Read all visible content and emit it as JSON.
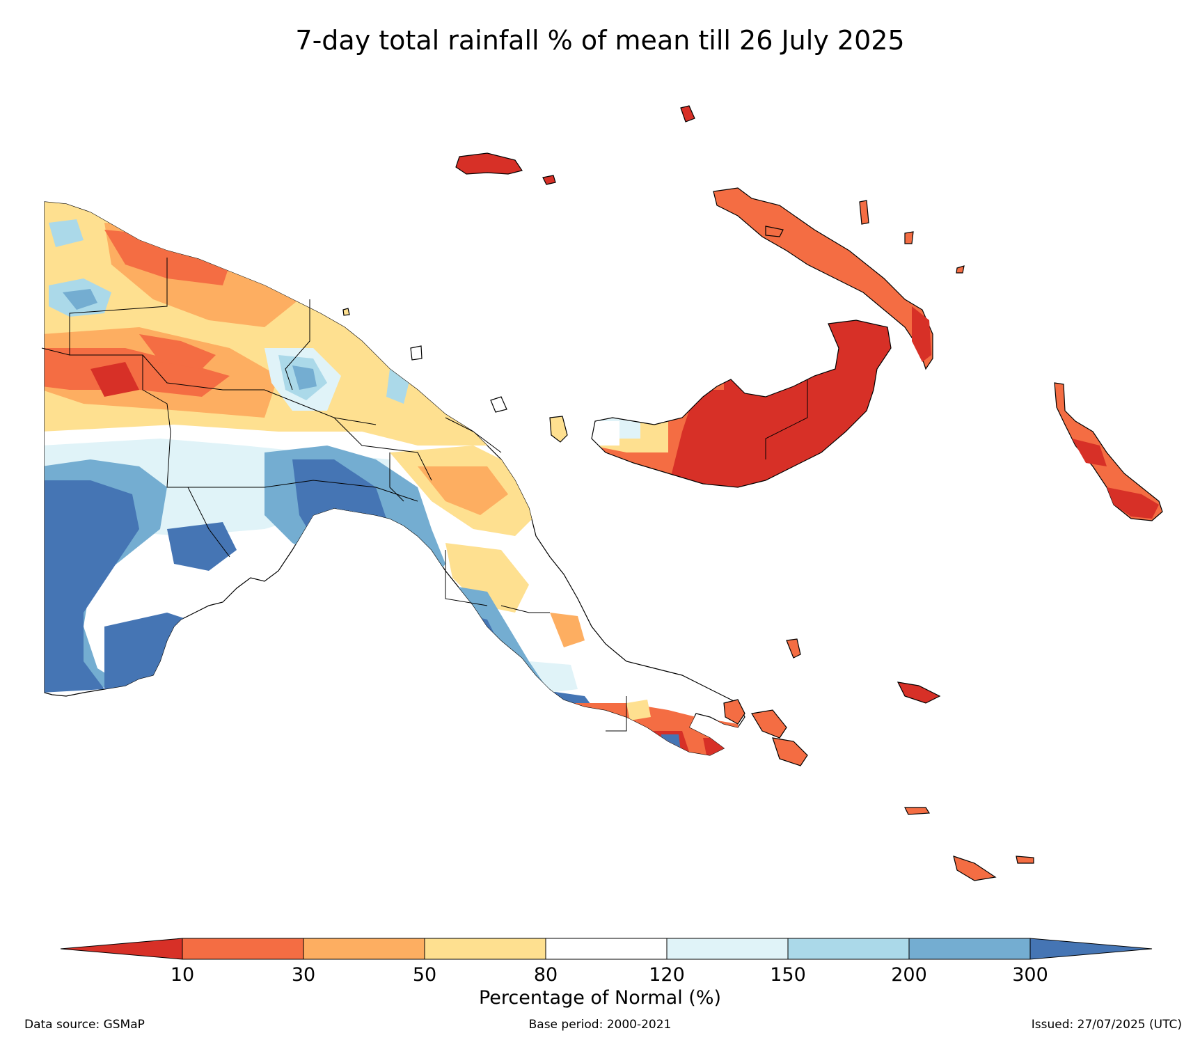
{
  "title": "7-day total rainfall % of mean till 26 July 2025",
  "colorbar": {
    "title": "Percentage of Normal (%)",
    "ticks": [
      "10",
      "30",
      "50",
      "80",
      "120",
      "150",
      "200",
      "300"
    ],
    "colors": {
      "lt10": "#d73027",
      "10-30": "#f46d43",
      "30-50": "#fdae61",
      "50-80": "#fee090",
      "80-120": "#ffffff",
      "120-150": "#e0f3f8",
      "150-200": "#abd9e9",
      "200-300": "#74add1",
      "gt300": "#4575b4"
    }
  },
  "footer": {
    "source": "Data source: GSMaP",
    "base_period": "Base period: 2000-2021",
    "issued": "Issued: 27/07/2025 (UTC)"
  }
}
